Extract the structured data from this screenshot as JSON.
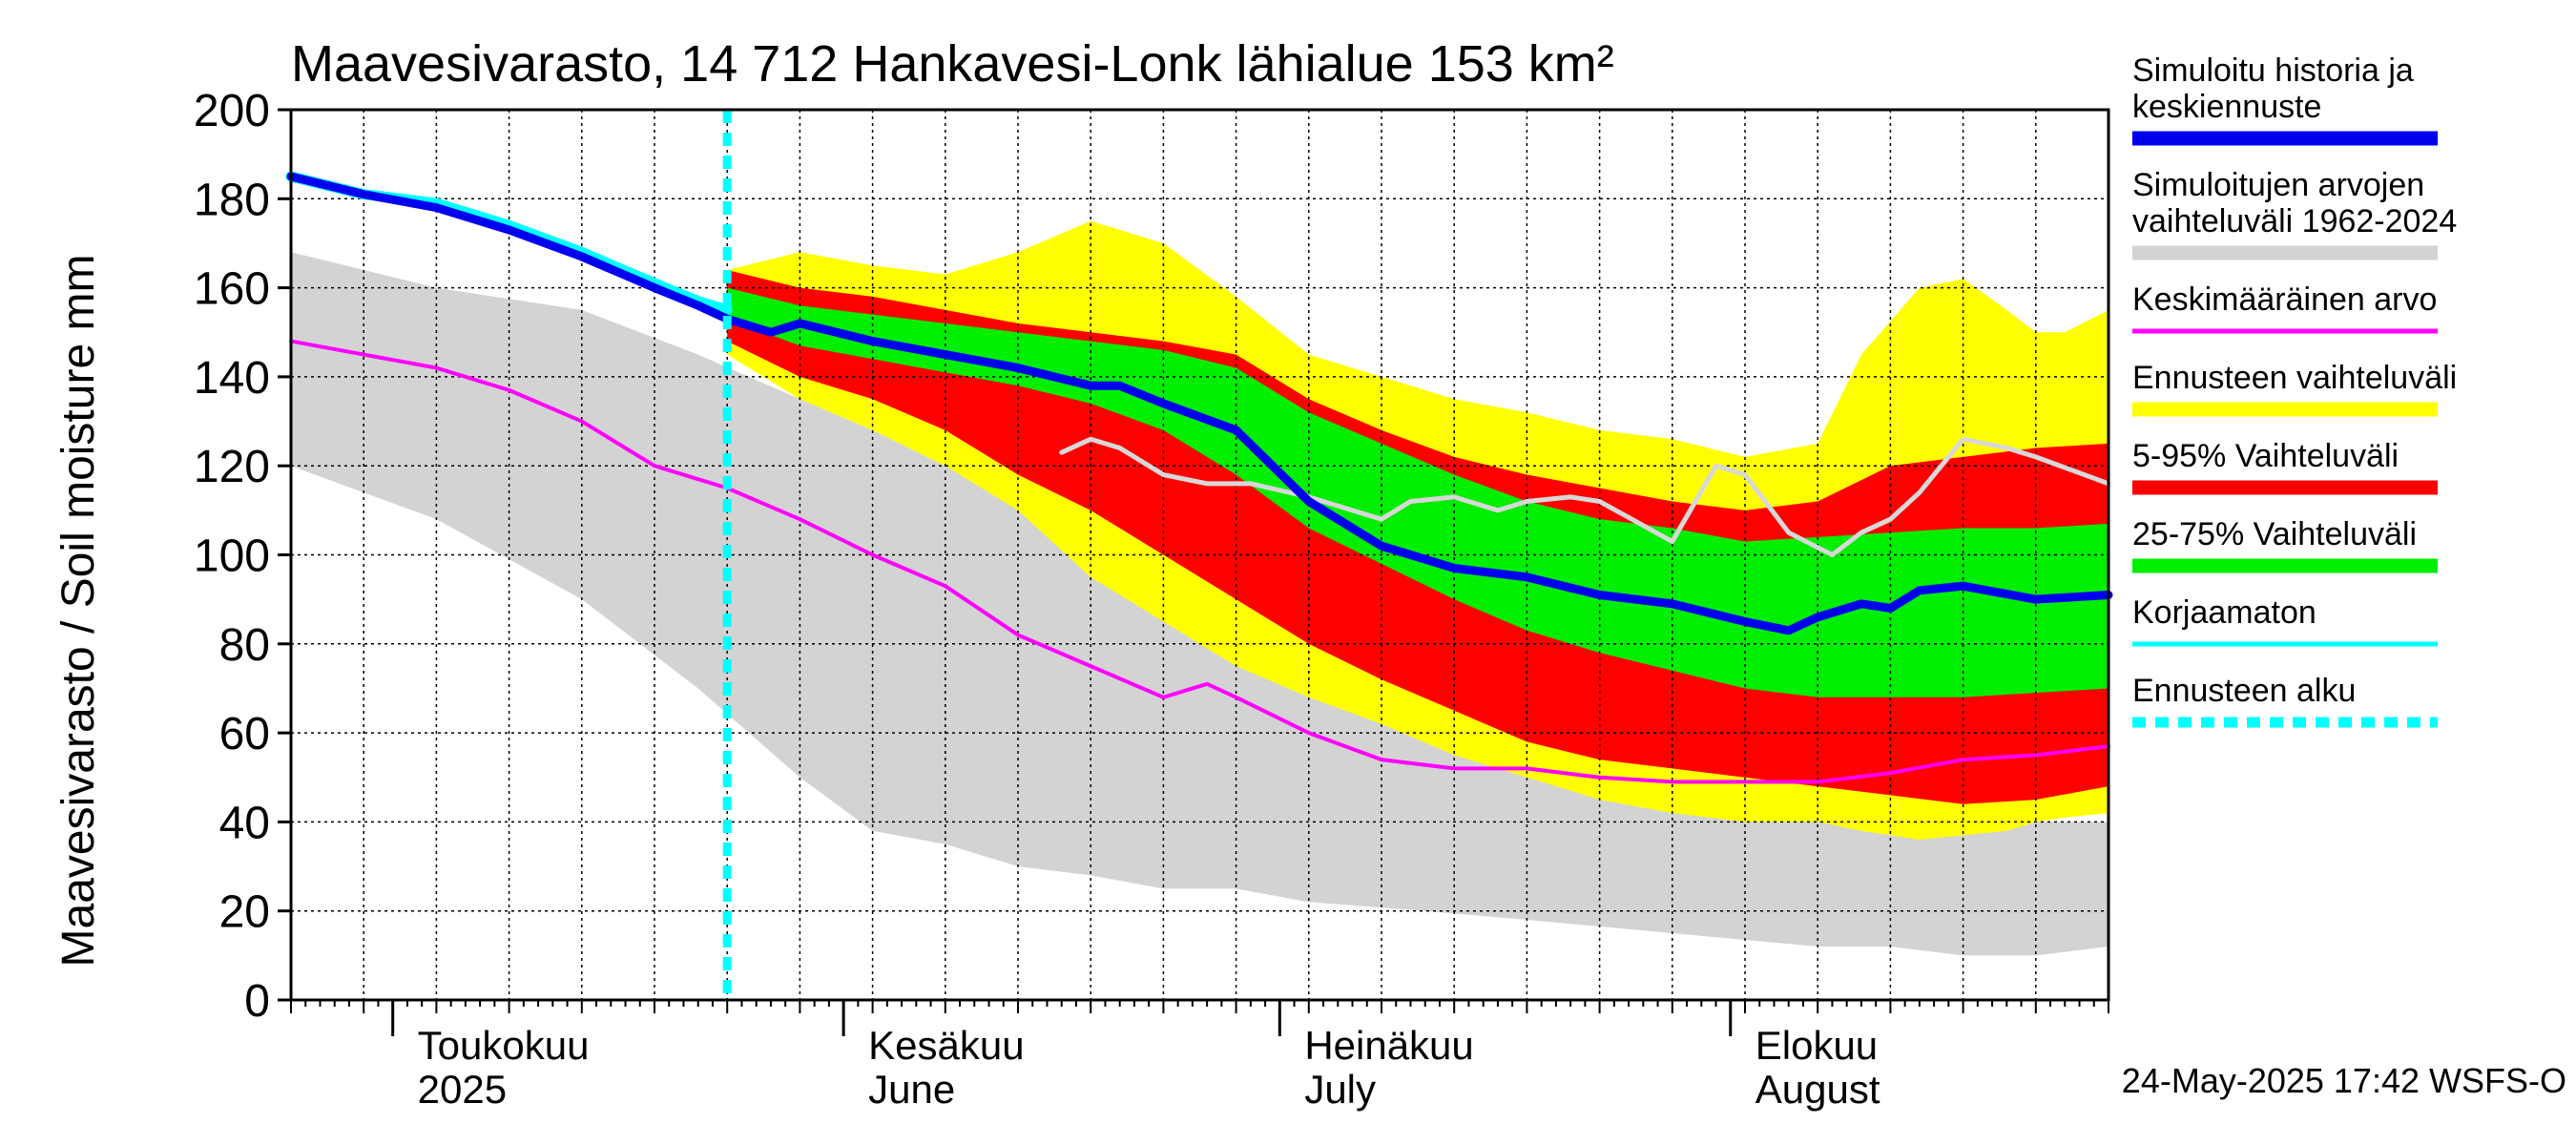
{
  "chart_data": {
    "type": "area",
    "title": "Maavesivarasto, 14 712 Hankavesi-Lonk lähialue 153 km²",
    "ylabel": "Maavesivarasto / Soil moisture   mm",
    "ylim": [
      0,
      200
    ],
    "yticks": [
      0,
      20,
      40,
      60,
      80,
      100,
      120,
      140,
      160,
      180,
      200
    ],
    "x_day_range": [
      0,
      125
    ],
    "forecast_start_day": 30,
    "month_labels": [
      {
        "fi": "Toukokuu",
        "en": "2025",
        "day": 7
      },
      {
        "fi": "Kesäkuu",
        "en": "June",
        "day": 38
      },
      {
        "fi": "Heinäkuu",
        "en": "July",
        "day": 68
      },
      {
        "fi": "Elokuu",
        "en": "August",
        "day": 99
      }
    ],
    "month_boundaries": [
      7,
      38,
      68,
      99
    ],
    "grid": true,
    "legend_position": "right",
    "timestamp": "24-May-2025 17:42 WSFS-O",
    "series": [
      {
        "name": "hist_range",
        "legend": "Simuloitujen arvojen vaihteluväli 1962-2024",
        "color": "#d3d3d3",
        "x": [
          0,
          10,
          20,
          28,
          35,
          40,
          45,
          50,
          55,
          60,
          65,
          70,
          78,
          85,
          95,
          105,
          110,
          115,
          120,
          125
        ],
        "upper": [
          168,
          160,
          155,
          145,
          135,
          128,
          120,
          112,
          105,
          102,
          98,
          92,
          80,
          70,
          55,
          47,
          45,
          42,
          40,
          40
        ],
        "lower": [
          120,
          108,
          90,
          70,
          50,
          38,
          35,
          30,
          28,
          25,
          25,
          22,
          20,
          18,
          15,
          12,
          12,
          10,
          10,
          12
        ]
      },
      {
        "name": "fc_range",
        "legend": "Ennusteen vaihteluväli",
        "color": "#ffff00",
        "x": [
          30,
          35,
          40,
          45,
          50,
          55,
          60,
          65,
          70,
          75,
          80,
          85,
          90,
          95,
          100,
          105,
          108,
          112,
          115,
          118,
          120,
          122,
          125
        ],
        "upper": [
          164,
          168,
          165,
          163,
          168,
          175,
          170,
          158,
          145,
          140,
          135,
          132,
          128,
          126,
          122,
          125,
          145,
          160,
          162,
          155,
          150,
          150,
          155
        ],
        "lower": [
          145,
          135,
          128,
          120,
          110,
          95,
          85,
          75,
          68,
          62,
          55,
          50,
          45,
          42,
          40,
          40,
          38,
          36,
          37,
          38,
          40,
          41,
          42
        ]
      },
      {
        "name": "p5_95",
        "legend": "5-95% Vaihteluväli",
        "color": "#ff0000",
        "x": [
          30,
          35,
          40,
          45,
          50,
          55,
          60,
          65,
          70,
          75,
          80,
          85,
          90,
          95,
          100,
          105,
          110,
          115,
          120,
          125
        ],
        "upper": [
          164,
          160,
          158,
          155,
          152,
          150,
          148,
          145,
          135,
          128,
          122,
          118,
          115,
          112,
          110,
          112,
          120,
          122,
          124,
          125
        ],
        "lower": [
          148,
          140,
          135,
          128,
          118,
          110,
          100,
          90,
          80,
          72,
          65,
          58,
          54,
          52,
          50,
          48,
          46,
          44,
          45,
          48
        ]
      },
      {
        "name": "p25_75",
        "legend": "25-75% Vaihteluväli",
        "color": "#00ee00",
        "x": [
          30,
          35,
          40,
          45,
          50,
          55,
          60,
          65,
          70,
          75,
          80,
          85,
          90,
          95,
          100,
          105,
          110,
          115,
          120,
          125
        ],
        "upper": [
          160,
          156,
          154,
          152,
          150,
          148,
          146,
          142,
          132,
          125,
          118,
          112,
          108,
          106,
          103,
          104,
          105,
          106,
          106,
          107
        ],
        "lower": [
          153,
          147,
          144,
          141,
          138,
          134,
          128,
          118,
          106,
          98,
          90,
          83,
          78,
          74,
          70,
          68,
          68,
          68,
          69,
          70
        ]
      },
      {
        "name": "mean",
        "legend": "Keskimääräinen arvo",
        "color": "#ff00ff",
        "x": [
          0,
          5,
          10,
          15,
          20,
          25,
          30,
          35,
          40,
          45,
          50,
          55,
          60,
          63,
          65,
          70,
          75,
          80,
          85,
          90,
          95,
          100,
          105,
          110,
          115,
          120,
          125
        ],
        "y": [
          148,
          145,
          142,
          137,
          130,
          120,
          115,
          108,
          100,
          93,
          82,
          75,
          68,
          71,
          68,
          60,
          54,
          52,
          52,
          50,
          49,
          49,
          49,
          51,
          54,
          55,
          57
        ]
      },
      {
        "name": "uncorrected",
        "legend": "Korjaamaton",
        "color": "#00ffff",
        "x": [
          0,
          5,
          10,
          15,
          20,
          25,
          28,
          30
        ],
        "y": [
          185,
          181,
          179,
          174,
          168,
          161,
          157,
          155
        ]
      },
      {
        "name": "median_uncorr",
        "legend": "",
        "color": "#d8d8d8",
        "x": [
          53,
          55,
          57,
          60,
          63,
          66,
          70,
          75,
          77,
          80,
          83,
          85,
          88,
          90,
          95,
          98,
          100,
          103,
          106,
          108,
          110,
          112,
          115,
          118,
          120,
          125
        ],
        "y": [
          123,
          126,
          124,
          118,
          116,
          116,
          113,
          108,
          112,
          113,
          110,
          112,
          113,
          112,
          103,
          120,
          118,
          105,
          100,
          105,
          108,
          114,
          126,
          124,
          122,
          116
        ]
      },
      {
        "name": "history_median",
        "legend": "Simuloitu historia ja keskiennuste",
        "color": "#0000ee",
        "x": [
          0,
          5,
          10,
          15,
          20,
          25,
          28,
          30,
          33,
          35,
          40,
          45,
          50,
          55,
          57,
          60,
          65,
          70,
          75,
          80,
          85,
          90,
          95,
          100,
          103,
          105,
          108,
          110,
          112,
          115,
          120,
          125
        ],
        "y": [
          185,
          181,
          178,
          173,
          167,
          160,
          156,
          153,
          150,
          152,
          148,
          145,
          142,
          138,
          138,
          134,
          128,
          112,
          102,
          97,
          95,
          91,
          89,
          85,
          83,
          86,
          89,
          88,
          92,
          93,
          90,
          91
        ]
      }
    ],
    "legend": [
      {
        "label": "Simuloitu historia ja keskiennuste",
        "lines": [
          "Simuloitu historia ja",
          "keskiennuste"
        ],
        "color": "#0000ee",
        "style": "solid"
      },
      {
        "label": "Simuloitujen arvojen vaihteluväli 1962-2024",
        "lines": [
          "Simuloitujen arvojen",
          "vaihteluväli 1962-2024"
        ],
        "color": "#d3d3d3",
        "style": "solid"
      },
      {
        "label": "Keskimääräinen arvo",
        "lines": [
          "Keskimääräinen arvo"
        ],
        "color": "#ff00ff",
        "style": "solid"
      },
      {
        "label": "Ennusteen vaihteluväli",
        "lines": [
          "Ennusteen vaihteluväli"
        ],
        "color": "#ffff00",
        "style": "solid"
      },
      {
        "label": "5-95% Vaihteluväli",
        "lines": [
          "5-95% Vaihteluväli"
        ],
        "color": "#ff0000",
        "style": "solid"
      },
      {
        "label": "25-75% Vaihteluväli",
        "lines": [
          "25-75% Vaihteluväli"
        ],
        "color": "#00ee00",
        "style": "solid"
      },
      {
        "label": "Korjaamaton",
        "lines": [
          "Korjaamaton"
        ],
        "color": "#00ffff",
        "style": "solid"
      },
      {
        "label": "Ennusteen alku",
        "lines": [
          "Ennusteen alku"
        ],
        "color": "#00ffff",
        "style": "dashed"
      }
    ]
  }
}
